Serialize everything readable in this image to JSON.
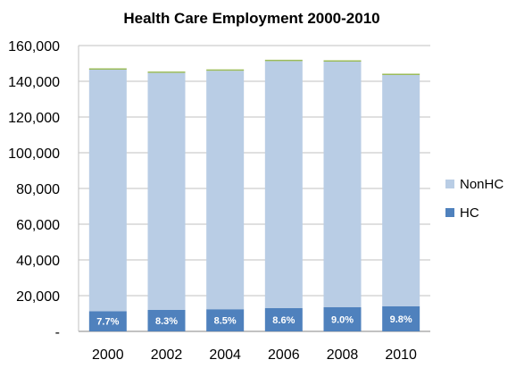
{
  "chart_data": {
    "type": "bar",
    "stacked": true,
    "title": "Health Care Employment  2000-2010",
    "xlabel": "",
    "ylabel": "",
    "categories": [
      "2000",
      "2002",
      "2004",
      "2006",
      "2008",
      "2010"
    ],
    "series": [
      {
        "name": "HC",
        "values": [
          11300,
          12000,
          12400,
          13000,
          13600,
          14100
        ],
        "color": "#4f81bd"
      },
      {
        "name": "NonHC",
        "values": [
          135200,
          132700,
          133500,
          138300,
          137400,
          129400
        ],
        "color": "#b9cde5"
      }
    ],
    "top_segment_color": "#9bbb59",
    "data_labels": [
      "7.7%",
      "8.3%",
      "8.5%",
      "8.6%",
      "9.0%",
      "9.8%"
    ],
    "ylim": [
      0,
      160000
    ],
    "y_ticks": [
      0,
      20000,
      40000,
      60000,
      80000,
      100000,
      120000,
      140000,
      160000
    ],
    "y_tick_labels": [
      "-",
      "20,000",
      "40,000",
      "60,000",
      "80,000",
      "100,000",
      "120,000",
      "140,000",
      "160,000"
    ],
    "legend_order": [
      "NonHC",
      "HC"
    ],
    "legend_position": "right",
    "grid": "horizontal",
    "grid_color": "#c0c0c0"
  }
}
